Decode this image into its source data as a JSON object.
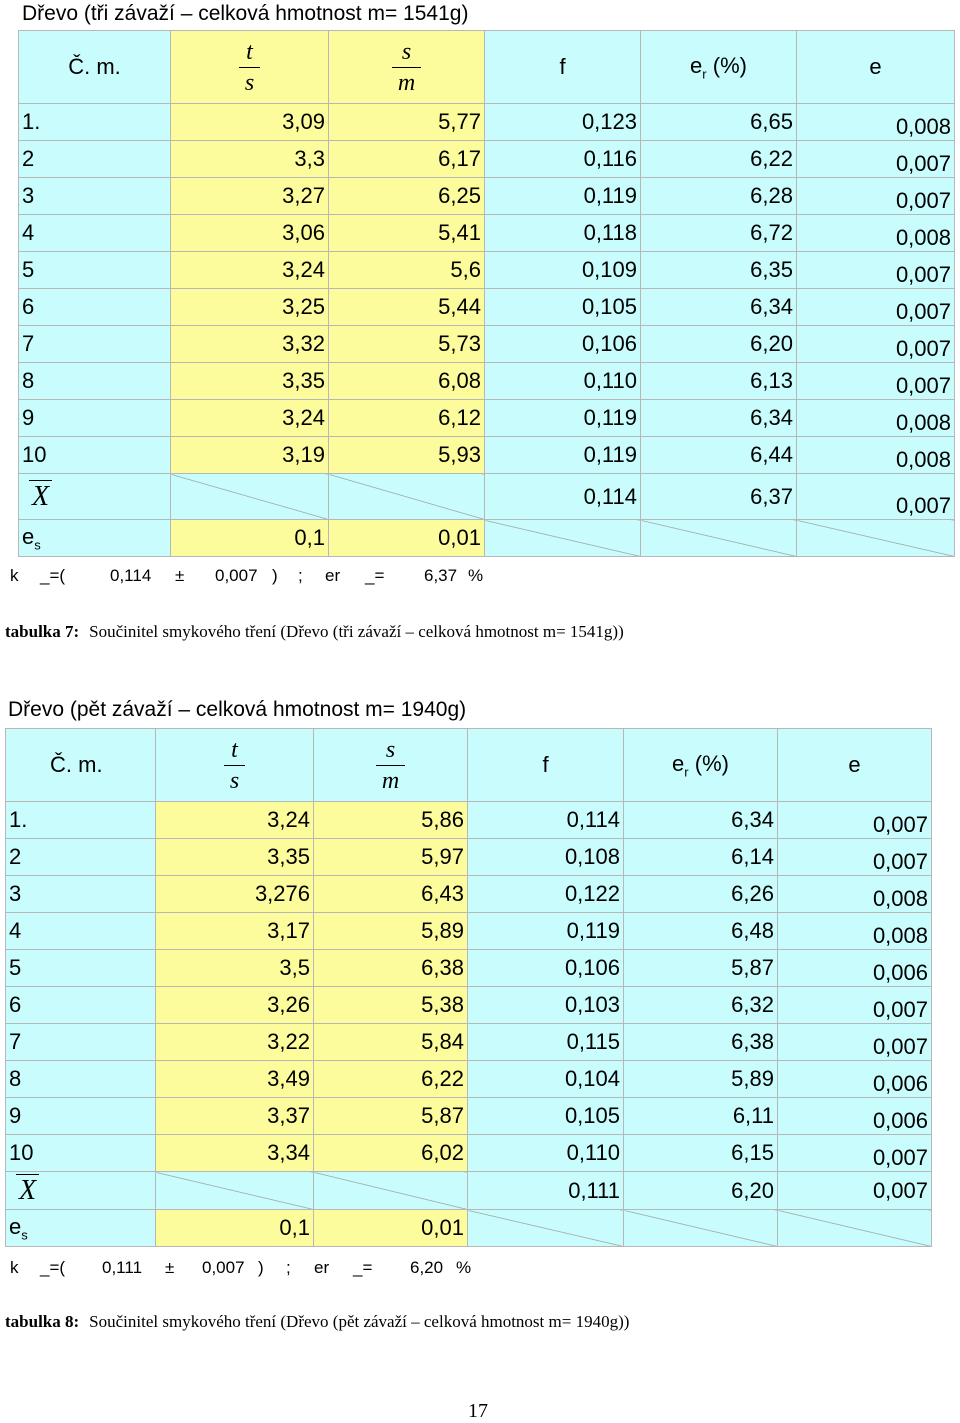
{
  "table7": {
    "title": "Dřevo (tři závaží – celková hmotnost m= 1541g)",
    "headers": {
      "cm": "Č. m.",
      "t": "t",
      "s1": "s",
      "s2": "s",
      "m": "m",
      "f": "f",
      "er": "e",
      "er_sub": "r",
      "er_tail": " (%)",
      "e": "e"
    },
    "rows": [
      [
        "1.",
        "3,09",
        "5,77",
        "0,123",
        "6,65",
        "0,008"
      ],
      [
        "2",
        "3,3",
        "6,17",
        "0,116",
        "6,22",
        "0,007"
      ],
      [
        "3",
        "3,27",
        "6,25",
        "0,119",
        "6,28",
        "0,007"
      ],
      [
        "4",
        "3,06",
        "5,41",
        "0,118",
        "6,72",
        "0,008"
      ],
      [
        "5",
        "3,24",
        "5,6",
        "0,109",
        "6,35",
        "0,007"
      ],
      [
        "6",
        "3,25",
        "5,44",
        "0,105",
        "6,34",
        "0,007"
      ],
      [
        "7",
        "3,32",
        "5,73",
        "0,106",
        "6,20",
        "0,007"
      ],
      [
        "8",
        "3,35",
        "6,08",
        "0,110",
        "6,13",
        "0,007"
      ],
      [
        "9",
        "3,24",
        "6,12",
        "0,119",
        "6,34",
        "0,008"
      ],
      [
        "10",
        "3,19",
        "5,93",
        "0,119",
        "6,44",
        "0,008"
      ]
    ],
    "mean": {
      "label": "X",
      "f": "0,114",
      "er": "6,37",
      "e": "0,007"
    },
    "es": {
      "label": "e",
      "sub": "s",
      "t": "0,1",
      "v": "0,01"
    },
    "result": {
      "k": "k",
      "eq": "_=(",
      "val": "0,114",
      "pm": "±",
      "err": "0,007",
      "close": ")",
      "semi": ";",
      "er": "er",
      "eq2": "_=",
      "erval": "6,37",
      "pct": "%"
    },
    "caption_label": "tabulka 7:",
    "caption_text": "Součinitel smykového tření (Dřevo (tři závaží – celková hmotnost m= 1541g))"
  },
  "table8": {
    "title": "Dřevo (pět závaží – celková hmotnost m= 1940g)",
    "headers": {
      "cm": "Č. m.",
      "t": "t",
      "s1": "s",
      "s2": "s",
      "m": "m",
      "f": "f",
      "er": "e",
      "er_sub": "r",
      "er_tail": " (%)",
      "e": "e"
    },
    "rows": [
      [
        "1.",
        "3,24",
        "5,86",
        "0,114",
        "6,34",
        "0,007"
      ],
      [
        "2",
        "3,35",
        "5,97",
        "0,108",
        "6,14",
        "0,007"
      ],
      [
        "3",
        "3,276",
        "6,43",
        "0,122",
        "6,26",
        "0,008"
      ],
      [
        "4",
        "3,17",
        "5,89",
        "0,119",
        "6,48",
        "0,008"
      ],
      [
        "5",
        "3,5",
        "6,38",
        "0,106",
        "5,87",
        "0,006"
      ],
      [
        "6",
        "3,26",
        "5,38",
        "0,103",
        "6,32",
        "0,007"
      ],
      [
        "7",
        "3,22",
        "5,84",
        "0,115",
        "6,38",
        "0,007"
      ],
      [
        "8",
        "3,49",
        "6,22",
        "0,104",
        "5,89",
        "0,006"
      ],
      [
        "9",
        "3,37",
        "5,87",
        "0,105",
        "6,11",
        "0,006"
      ],
      [
        "10",
        "3,34",
        "6,02",
        "0,110",
        "6,15",
        "0,007"
      ]
    ],
    "mean": {
      "label": "X",
      "f": "0,111",
      "er": "6,20",
      "e": "0,007"
    },
    "es": {
      "label": "e",
      "sub": "s",
      "t": "0,1",
      "v": "0,01"
    },
    "result": {
      "k": "k",
      "eq": "_=(",
      "val": "0,111",
      "pm": "±",
      "err": "0,007",
      "close": ")",
      "semi": ";",
      "er": "er",
      "eq2": "_=",
      "erval": "6,20",
      "pct": "%"
    },
    "caption_label": "tabulka 8:",
    "caption_text": "Součinitel smykového tření (Dřevo (pět závaží – celková hmotnost m= 1940g))"
  },
  "page_number": "17",
  "colors": {
    "yellow": "#fdfc9c",
    "cyan": "#c9fdfd"
  }
}
